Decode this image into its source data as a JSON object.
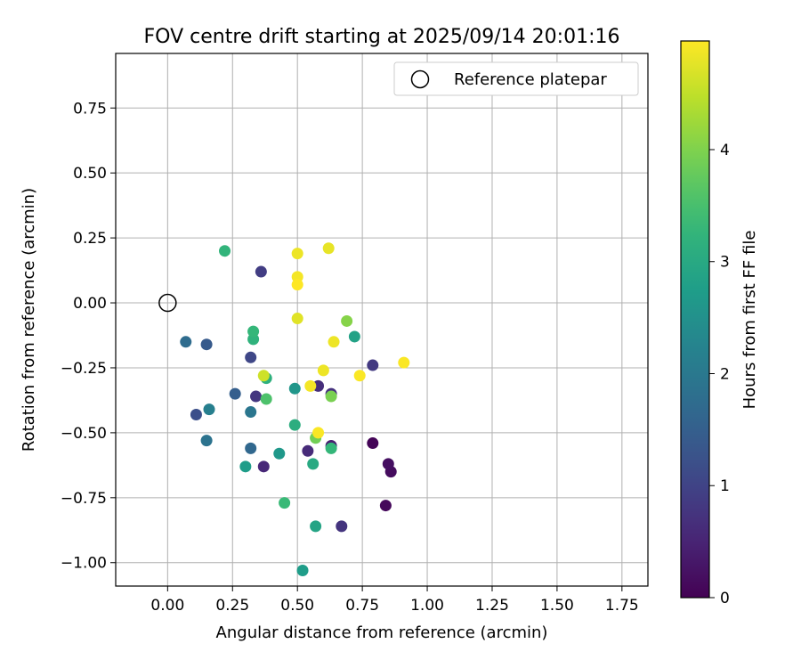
{
  "chart_data": {
    "type": "scatter",
    "title": "FOV centre drift starting at 2025/09/14 20:01:16",
    "xlabel": "Angular distance from reference (arcmin)",
    "ylabel": "Rotation from reference (arcmin)",
    "xlim": [
      -0.2,
      1.85
    ],
    "ylim": [
      -1.09,
      0.96
    ],
    "xticks": [
      0.0,
      0.25,
      0.5,
      0.75,
      1.0,
      1.25,
      1.5,
      1.75
    ],
    "xtick_labels": [
      "0.00",
      "0.25",
      "0.50",
      "0.75",
      "1.00",
      "1.25",
      "1.50",
      "1.75"
    ],
    "yticks": [
      0.75,
      0.5,
      0.25,
      0.0,
      -0.25,
      -0.5,
      -0.75,
      -1.0
    ],
    "ytick_labels": [
      "0.75",
      "0.50",
      "0.25",
      "0.00",
      "−0.25",
      "−0.50",
      "−0.75",
      "−1.00"
    ],
    "grid": true,
    "legend": {
      "position": "top-right",
      "entries": [
        "Reference platepar"
      ]
    },
    "reference_point": {
      "x": 0.0,
      "y": 0.0,
      "label": "Reference platepar"
    },
    "colorbar": {
      "label": "Hours from first FF file",
      "min": 0,
      "max": 4.97,
      "ticks": [
        0,
        1,
        2,
        3,
        4
      ],
      "tick_labels": [
        "0",
        "1",
        "2",
        "3",
        "4"
      ],
      "colormap": "viridis"
    },
    "series": [
      {
        "name": "FOV centre drift",
        "points": [
          {
            "x": 0.79,
            "y": -0.54,
            "t": 0.05
          },
          {
            "x": 0.84,
            "y": -0.78,
            "t": 0.1
          },
          {
            "x": 0.86,
            "y": -0.65,
            "t": 0.15
          },
          {
            "x": 0.85,
            "y": -0.62,
            "t": 0.2
          },
          {
            "x": 0.63,
            "y": -0.55,
            "t": 0.45
          },
          {
            "x": 0.37,
            "y": -0.63,
            "t": 0.55
          },
          {
            "x": 0.54,
            "y": -0.57,
            "t": 0.6
          },
          {
            "x": 0.58,
            "y": -0.32,
            "t": 0.65
          },
          {
            "x": 0.63,
            "y": -0.35,
            "t": 0.7
          },
          {
            "x": 0.67,
            "y": -0.86,
            "t": 0.75
          },
          {
            "x": 0.34,
            "y": -0.36,
            "t": 0.8
          },
          {
            "x": 0.79,
            "y": -0.24,
            "t": 0.85
          },
          {
            "x": 0.36,
            "y": 0.12,
            "t": 0.9
          },
          {
            "x": 0.32,
            "y": -0.21,
            "t": 1.05
          },
          {
            "x": 0.11,
            "y": -0.43,
            "t": 1.2
          },
          {
            "x": 0.15,
            "y": -0.16,
            "t": 1.4
          },
          {
            "x": 0.26,
            "y": -0.35,
            "t": 1.5
          },
          {
            "x": 0.32,
            "y": -0.56,
            "t": 1.65
          },
          {
            "x": 0.07,
            "y": -0.15,
            "t": 1.75
          },
          {
            "x": 0.15,
            "y": -0.53,
            "t": 1.9
          },
          {
            "x": 0.32,
            "y": -0.42,
            "t": 1.95
          },
          {
            "x": 0.16,
            "y": -0.41,
            "t": 2.15
          },
          {
            "x": 0.49,
            "y": -0.33,
            "t": 2.6
          },
          {
            "x": 0.43,
            "y": -0.58,
            "t": 2.65
          },
          {
            "x": 0.52,
            "y": -1.03,
            "t": 2.75
          },
          {
            "x": 0.3,
            "y": -0.63,
            "t": 2.75
          },
          {
            "x": 0.72,
            "y": -0.13,
            "t": 2.85
          },
          {
            "x": 0.57,
            "y": -0.86,
            "t": 2.9
          },
          {
            "x": 0.56,
            "y": -0.62,
            "t": 3.0
          },
          {
            "x": 0.49,
            "y": -0.47,
            "t": 3.1
          },
          {
            "x": 0.38,
            "y": -0.29,
            "t": 3.15
          },
          {
            "x": 0.33,
            "y": -0.14,
            "t": 3.2
          },
          {
            "x": 0.22,
            "y": 0.2,
            "t": 3.25
          },
          {
            "x": 0.63,
            "y": -0.56,
            "t": 3.3
          },
          {
            "x": 0.33,
            "y": -0.11,
            "t": 3.3
          },
          {
            "x": 0.45,
            "y": -0.77,
            "t": 3.35
          },
          {
            "x": 0.38,
            "y": -0.37,
            "t": 3.55
          },
          {
            "x": 0.57,
            "y": -0.52,
            "t": 3.9
          },
          {
            "x": 0.63,
            "y": -0.36,
            "t": 3.95
          },
          {
            "x": 0.69,
            "y": -0.07,
            "t": 4.05
          },
          {
            "x": 0.37,
            "y": -0.28,
            "t": 4.6
          },
          {
            "x": 0.5,
            "y": -0.06,
            "t": 4.75
          },
          {
            "x": 0.62,
            "y": 0.21,
            "t": 4.8
          },
          {
            "x": 0.5,
            "y": 0.19,
            "t": 4.85
          },
          {
            "x": 0.64,
            "y": -0.15,
            "t": 4.85
          },
          {
            "x": 0.6,
            "y": -0.26,
            "t": 4.85
          },
          {
            "x": 0.55,
            "y": -0.32,
            "t": 4.9
          },
          {
            "x": 0.5,
            "y": 0.1,
            "t": 4.9
          },
          {
            "x": 0.58,
            "y": -0.5,
            "t": 4.95
          },
          {
            "x": 0.74,
            "y": -0.28,
            "t": 4.95
          },
          {
            "x": 0.91,
            "y": -0.23,
            "t": 4.95
          },
          {
            "x": 0.5,
            "y": 0.07,
            "t": 4.97
          }
        ]
      }
    ]
  }
}
